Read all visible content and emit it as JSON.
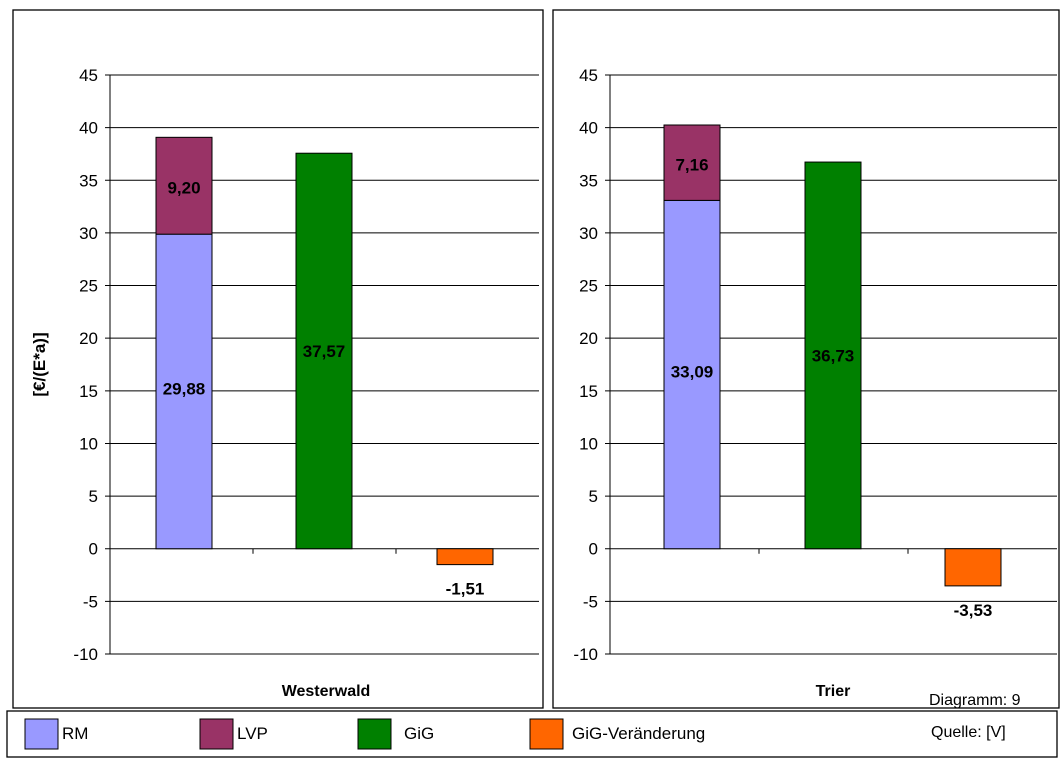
{
  "colors": {
    "RM": "#9999FF",
    "LVP": "#993366",
    "GiG": "#008000",
    "GiG-Veränderung": "#FF6600"
  },
  "chart_data": [
    {
      "type": "bar",
      "xlabel": "Westerwald",
      "ylabel": "[€/(E*a)]",
      "ylim": [
        -10,
        45
      ],
      "yticks": [
        45,
        40,
        35,
        30,
        25,
        20,
        15,
        10,
        5,
        0,
        -5,
        -10
      ],
      "ytick_labels": [
        "45",
        "40",
        "35",
        "30",
        "25",
        "20",
        "15",
        "10",
        "5",
        "0",
        "-5",
        "-10"
      ],
      "grid": true,
      "series": [
        {
          "name": "RM",
          "value": 29.88,
          "label": "29,88"
        },
        {
          "name": "LVP",
          "value": 9.2,
          "label": "9,20"
        },
        {
          "name": "GiG",
          "value": 37.57,
          "label": "37,57"
        },
        {
          "name": "GiG-Veränderung",
          "value": -1.51,
          "label": "-1,51"
        }
      ]
    },
    {
      "type": "bar",
      "xlabel": "Trier",
      "ylabel": "",
      "ylim": [
        -10,
        45
      ],
      "yticks": [
        45,
        40,
        35,
        30,
        25,
        20,
        15,
        10,
        5,
        0,
        -5,
        -10
      ],
      "ytick_labels": [
        "45",
        "40",
        "35",
        "30",
        "25",
        "20",
        "15",
        "10",
        "5",
        "0",
        "-5",
        "-10"
      ],
      "grid": true,
      "series": [
        {
          "name": "RM",
          "value": 33.09,
          "label": "33,09"
        },
        {
          "name": "LVP",
          "value": 7.16,
          "label": "7,16"
        },
        {
          "name": "GiG",
          "value": 36.73,
          "label": "36,73"
        },
        {
          "name": "GiG-Veränderung",
          "value": -3.53,
          "label": "-3,53"
        }
      ]
    }
  ],
  "legend": {
    "position": "bottom",
    "items": [
      "RM",
      "LVP",
      "GiG",
      "GiG-Veränderung"
    ]
  },
  "notes": {
    "diagram": "Diagramm: 9",
    "source": "Quelle: [V]"
  }
}
